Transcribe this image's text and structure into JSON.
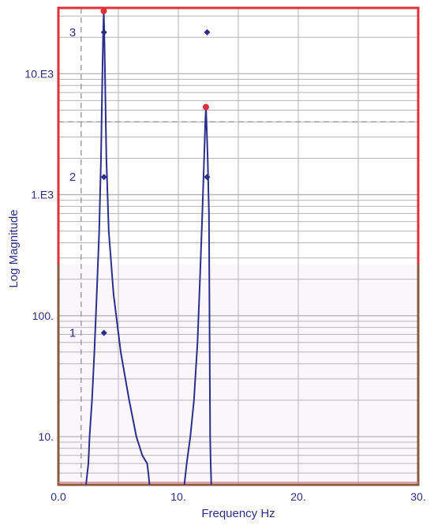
{
  "chart_data": {
    "type": "line",
    "xlabel": "Frequency Hz",
    "ylabel": "Log Magnitude",
    "xlim": [
      0,
      30
    ],
    "ylim": [
      4,
      35000
    ],
    "y_scale": "log",
    "grid": true,
    "x_ticks": [
      {
        "value": 0,
        "label": "0.0"
      },
      {
        "value": 10,
        "label": "10."
      },
      {
        "value": 20,
        "label": "20."
      },
      {
        "value": 30,
        "label": "30."
      }
    ],
    "y_ticks": [
      {
        "value": 10,
        "label": "10."
      },
      {
        "value": 100,
        "label": "100."
      },
      {
        "value": 1000,
        "label": "1.E3"
      },
      {
        "value": 10000,
        "label": "10.E3"
      }
    ],
    "reference_lines": {
      "x": 1.9,
      "y": 4000
    },
    "series": [
      {
        "color": "#2b2e8a",
        "x": [
          2.3,
          2.5,
          2.6,
          2.8,
          3.0,
          3.2,
          3.4,
          3.55,
          3.65,
          3.72,
          3.78,
          3.84,
          3.9,
          4.0,
          4.2,
          4.6,
          5.2,
          5.9,
          6.5,
          7.0,
          7.4,
          7.5,
          7.6
        ],
        "y": [
          4,
          6,
          10,
          20,
          50,
          150,
          500,
          2000,
          8000,
          18000,
          33000,
          18000,
          8000,
          2000,
          500,
          150,
          50,
          20,
          10,
          7,
          6,
          5,
          4
        ]
      },
      {
        "color": "#2b2e8a",
        "x": [
          10.5,
          10.7,
          11.0,
          11.3,
          11.6,
          11.8,
          12.0,
          12.15,
          12.25,
          12.3,
          12.35,
          12.45,
          12.55,
          12.6,
          12.65,
          12.7,
          12.75
        ],
        "y": [
          4,
          6,
          10,
          20,
          60,
          200,
          700,
          2000,
          4000,
          5300,
          4000,
          2000,
          700,
          100,
          10,
          6,
          4
        ]
      }
    ],
    "peaks": [
      {
        "x": 3.78,
        "y": 33000,
        "color": "#e0303a"
      },
      {
        "x": 12.3,
        "y": 5300,
        "color": "#e0303a"
      }
    ],
    "markers": [
      {
        "label": "3",
        "y": 22000,
        "points_x": [
          3.8,
          12.4
        ]
      },
      {
        "label": "2",
        "y": 1400,
        "points_x": [
          3.8,
          12.4
        ]
      },
      {
        "label": "1",
        "y": 72,
        "points_x": [
          3.8
        ]
      }
    ],
    "colors": {
      "plot_border_top": "#e0303a",
      "plot_border_bottom": "#8a5a3c",
      "curve": "#2b2e8a",
      "grid": "#b5b5b5",
      "text": "#2b2e8a"
    }
  }
}
